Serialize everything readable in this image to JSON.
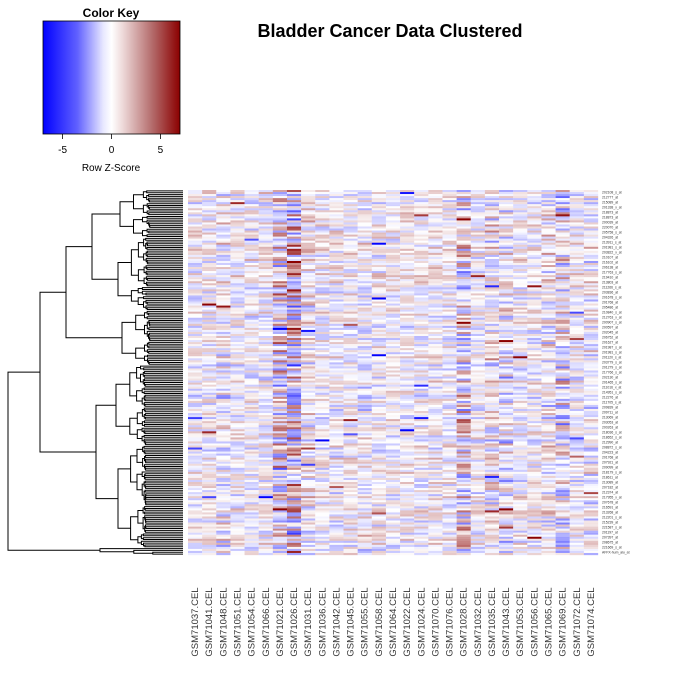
{
  "chart_data": {
    "type": "heatmap",
    "title": "Bladder Cancer Data Clustered",
    "color_key": {
      "title": "Color Key",
      "label": "Row Z-Score",
      "ticks": [
        "-5",
        "0",
        "5"
      ],
      "tick_values": [
        -5,
        0,
        5
      ],
      "range": [
        -7,
        7
      ],
      "low_color": "#0000ff",
      "mid_color": "#ffffff",
      "high_color": "#8b0000"
    },
    "columns": [
      "GSM71037.CEL",
      "GSM71041.CEL",
      "GSM71048.CEL",
      "GSM71051.CEL",
      "GSM71054.CEL",
      "GSM71066.CEL",
      "GSM71021.CEL",
      "GSM71026.CEL",
      "GSM71031.CEL",
      "GSM71036.CEL",
      "GSM71042.CEL",
      "GSM71045.CEL",
      "GSM71055.CEL",
      "GSM71058.CEL",
      "GSM71064.CEL",
      "GSM71022.CEL",
      "GSM71024.CEL",
      "GSM71070.CEL",
      "GSM71076.CEL",
      "GSM71028.CEL",
      "GSM71032.CEL",
      "GSM71035.CEL",
      "GSM71043.CEL",
      "GSM71053.CEL",
      "GSM71056.CEL",
      "GSM71065.CEL",
      "GSM71069.CEL",
      "GSM71072.CEL",
      "GSM71074.CEL"
    ],
    "row_labels": [
      "202108_s_at",
      "212777_at",
      "215089_at",
      "201338_x_at",
      "218873_at",
      "218873_at",
      "200039_at",
      "220070_at",
      "205758_s_at",
      "204326_at",
      "213911_s_at",
      "201981_s_at",
      "203822_x_at",
      "210107_at",
      "216102_at",
      "206138_at",
      "217763_s_at",
      "219410_at",
      "213803_at",
      "211266_s_at",
      "203836_at",
      "201678_s_at",
      "201768_at",
      "205486_at",
      "210840_s_at",
      "212763_x_at",
      "200907_s_at",
      "200597_at",
      "202045_at",
      "206752_at",
      "201627_at",
      "201987_s_at",
      "201981_s_at",
      "201120_s_at",
      "203779_s_at",
      "201279_s_at",
      "217766_s_at",
      "202130_at",
      "201465_s_at",
      "211016_x_at",
      "214951_s_at",
      "212276_at",
      "211705_s_at",
      "209839_at",
      "209711_at",
      "213069_at",
      "203053_at",
      "200263_at",
      "218036_s_at",
      "218652_s_at",
      "212990_at",
      "208872_s_at",
      "204223_at",
      "201768_at",
      "207921_at",
      "209099_at",
      "218179_s_at",
      "218611_at",
      "213089_at",
      "207182_at",
      "212374_at",
      "217955_x_at",
      "207678_at",
      "216591_at",
      "213268_at",
      "212201_s_at",
      "215239_at",
      "221587_s_at",
      "201197_at",
      "207397_at",
      "208675_at",
      "221669_s_at",
      "AFFX-hum_alu_at"
    ],
    "axes_shown": false,
    "grid": false,
    "legend_placement": "top-left"
  }
}
